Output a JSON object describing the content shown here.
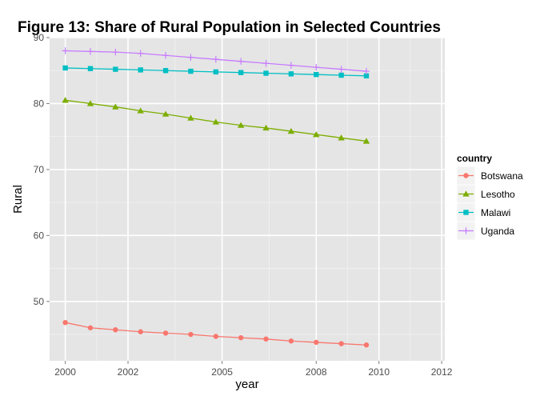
{
  "chart_data": {
    "type": "line",
    "title": "Figure 13: Share of Rural Population in Selected Countries",
    "xlabel": "year",
    "ylabel": "Rural",
    "xlim": [
      1999.5,
      2012.1
    ],
    "ylim": [
      41,
      90
    ],
    "x_ticks": [
      2000,
      2002,
      2005,
      2008,
      2010,
      2012
    ],
    "y_ticks": [
      50,
      60,
      70,
      80,
      90
    ],
    "grid": true,
    "legend_title": "country",
    "legend_position": "right",
    "x": [
      2000,
      2000.8,
      2001.6,
      2002.4,
      2003.2,
      2004.0,
      2004.8,
      2005.6,
      2006.4,
      2007.2,
      2008.0,
      2008.8,
      2009.6,
      2010.4,
      2011.2
    ],
    "series": [
      {
        "name": "Botswana",
        "color": "#F8766D",
        "marker": "circle",
        "values": [
          46.8,
          46.0,
          45.7,
          45.4,
          45.2,
          45.0,
          44.7,
          44.5,
          44.3,
          44.0,
          43.8,
          43.6,
          43.4,
          null,
          null
        ]
      },
      {
        "name": "Lesotho",
        "color": "#7CAE00",
        "marker": "triangle",
        "values": [
          80.5,
          80.0,
          79.5,
          78.9,
          78.4,
          77.8,
          77.2,
          76.7,
          76.3,
          75.8,
          75.3,
          74.8,
          74.3,
          null,
          null
        ]
      },
      {
        "name": "Malawi",
        "color": "#00BFC4",
        "marker": "square",
        "values": [
          85.4,
          85.3,
          85.2,
          85.1,
          85.0,
          84.9,
          84.8,
          84.7,
          84.6,
          84.5,
          84.4,
          84.3,
          84.2,
          null,
          null
        ]
      },
      {
        "name": "Uganda",
        "color": "#C77CFF",
        "marker": "plus",
        "values": [
          88.0,
          87.9,
          87.8,
          87.6,
          87.3,
          87.0,
          86.7,
          86.4,
          86.1,
          85.8,
          85.5,
          85.2,
          84.9,
          null,
          null
        ]
      }
    ]
  }
}
